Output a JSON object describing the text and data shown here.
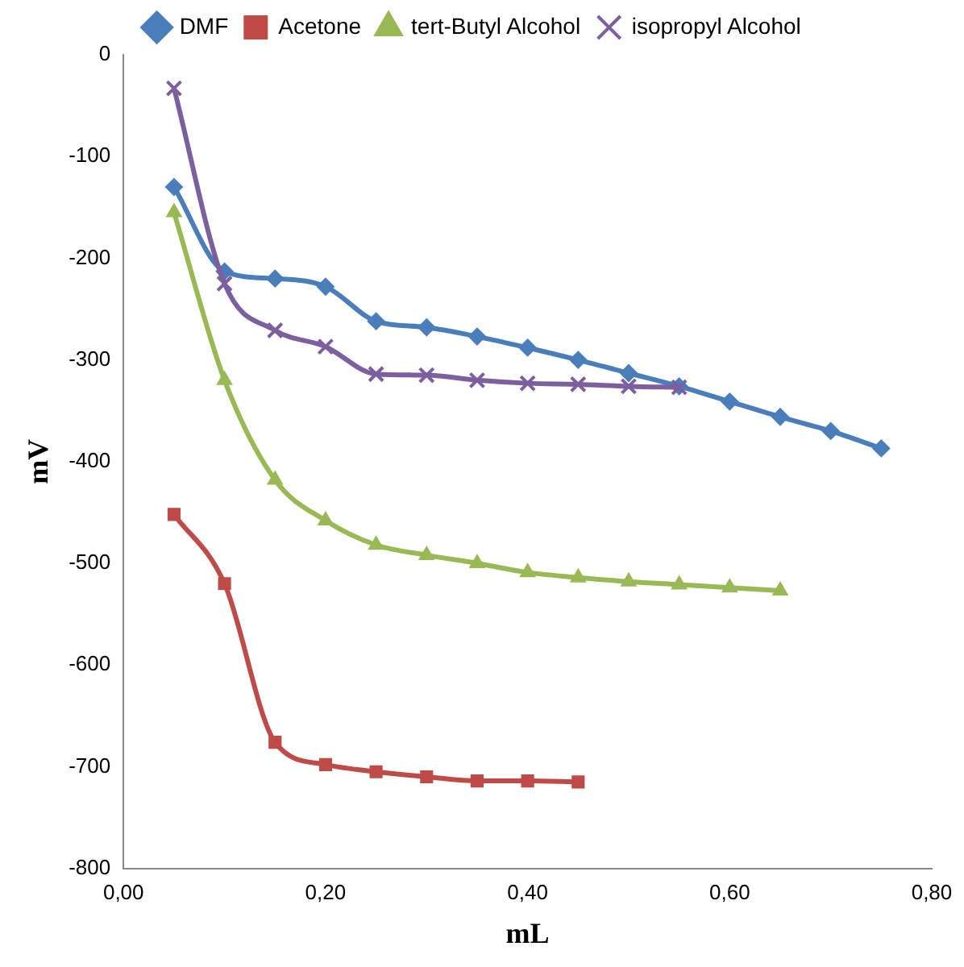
{
  "chart_data": {
    "type": "line",
    "xlabel": "mL",
    "ylabel": "mV",
    "x": [
      0.05,
      0.1,
      0.15,
      0.2,
      0.25,
      0.3,
      0.35,
      0.4,
      0.45,
      0.5,
      0.55,
      0.6,
      0.65,
      0.7,
      0.75
    ],
    "series": [
      {
        "name": "DMF",
        "color": "#4a7ebb",
        "marker": "diamond",
        "values": [
          -130,
          -213,
          -220,
          -228,
          -262,
          -268,
          -277,
          -288,
          -300,
          -313,
          -326,
          -341,
          -356,
          -370,
          -387
        ]
      },
      {
        "name": "Acetone",
        "color": "#be4b48",
        "marker": "square",
        "values": [
          -452,
          -520,
          -676,
          -698,
          -705,
          -710,
          -714,
          -714,
          -715,
          null,
          null,
          null,
          null,
          null,
          null
        ]
      },
      {
        "name": "tert-Butyl Alcohol",
        "color": "#98b954",
        "marker": "triangle",
        "values": [
          -155,
          -320,
          -418,
          -458,
          -482,
          -492,
          -500,
          -509,
          -514,
          -518,
          -521,
          -524,
          -527,
          null,
          null
        ]
      },
      {
        "name": "isopropyl Alcohol",
        "color": "#7d5fa0",
        "marker": "cross",
        "values": [
          -33,
          -225,
          -271,
          -287,
          -314,
          -315,
          -320,
          -323,
          -324,
          -326,
          -327,
          null,
          null,
          null,
          null
        ]
      }
    ],
    "xlim": [
      0,
      0.8
    ],
    "xticks": [
      {
        "value": 0,
        "label": "0,00"
      },
      {
        "value": 0.2,
        "label": "0,20"
      },
      {
        "value": 0.4,
        "label": "0,40"
      },
      {
        "value": 0.6,
        "label": "0,60"
      },
      {
        "value": 0.8,
        "label": "0,80"
      }
    ],
    "ylim": [
      -800,
      0
    ],
    "yticks": [
      -800,
      -700,
      -600,
      -500,
      -400,
      -300,
      -200,
      -100,
      0
    ],
    "grid": false,
    "legend": "top"
  }
}
